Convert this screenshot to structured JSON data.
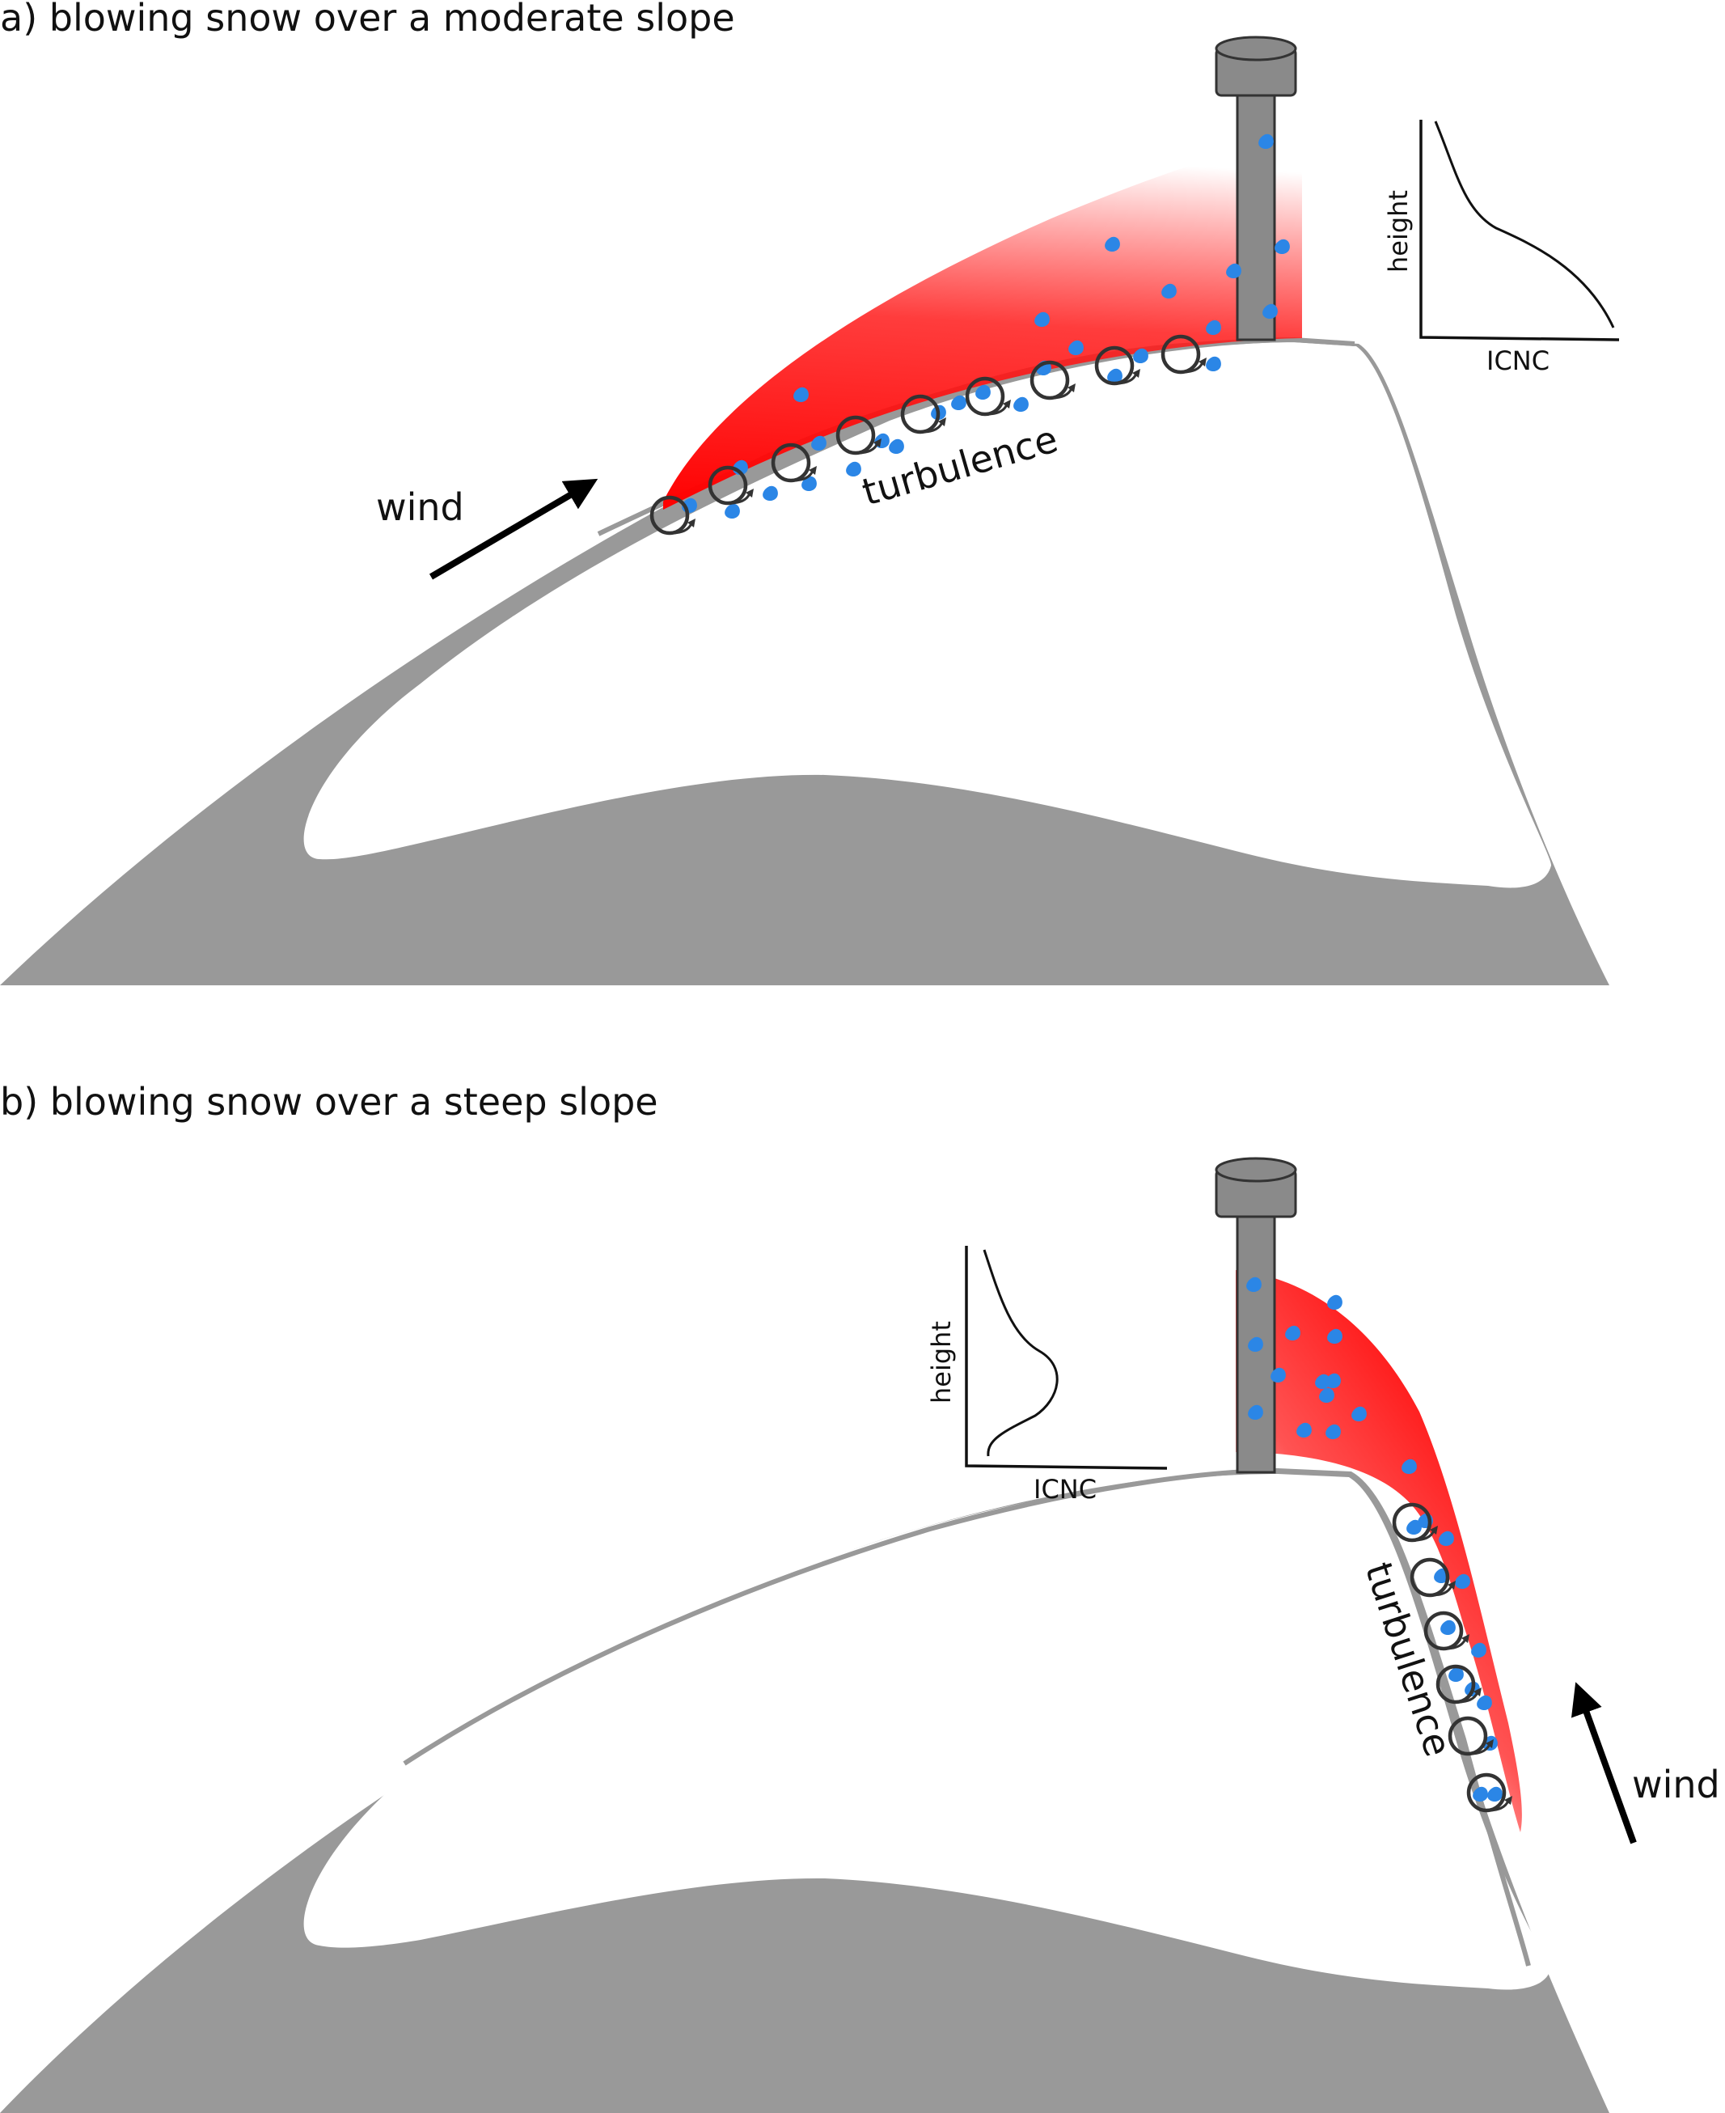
{
  "figure": {
    "panel_a": {
      "title": "a) blowing snow over a moderate slope",
      "wind_label": "wind",
      "turbulence_label": "turbulence",
      "profile": {
        "ylabel": "height",
        "xlabel": "ICNC",
        "shape": "decreasing with height"
      }
    },
    "panel_b": {
      "title": "b) blowing snow over a steep slope",
      "wind_label": "wind",
      "turbulence_label": "turbulence",
      "profile": {
        "ylabel": "height",
        "xlabel": "ICNC",
        "shape": "elevated maximum"
      }
    }
  },
  "colors": {
    "mountain": "#999999",
    "snow_cloud": "#ff0000",
    "snow_particles": "#2b86e6",
    "pole": "#8a8a8a",
    "text": "#111111"
  },
  "icons": [
    "mountain",
    "measurement-tower",
    "wind-arrow",
    "turbulent-eddy",
    "snow-particle",
    "icnc-profile-plot"
  ]
}
